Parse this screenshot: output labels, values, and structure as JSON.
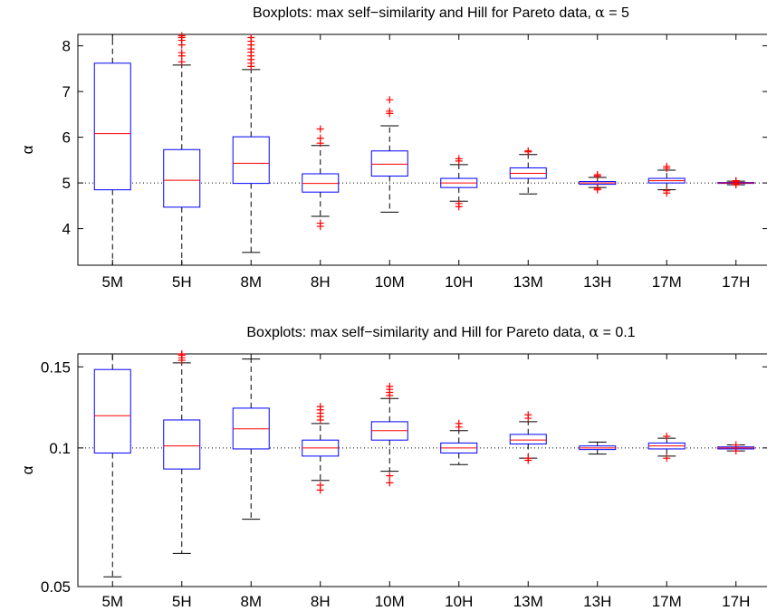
{
  "colors": {
    "box": "#0000ff",
    "median": "#ff0000",
    "whisker": "#000000",
    "outlier": "#ff0000",
    "reference": "#000000"
  },
  "chart_data": [
    {
      "type": "boxplot",
      "title": "Boxplots: max self−similarity and Hill for Pareto data,",
      "title_symbol": "α",
      "title_suffix": " = 5",
      "xlabel": "",
      "ylabel": "α",
      "ylim": [
        3.2,
        8.25
      ],
      "yticks": [
        4,
        5,
        6,
        7,
        8
      ],
      "ytick_labels": [
        "4",
        "5",
        "6",
        "7",
        "8"
      ],
      "reference_line": 5,
      "grid": false,
      "categories": [
        "5M",
        "5H",
        "8M",
        "8H",
        "10M",
        "10H",
        "13M",
        "13H",
        "17M",
        "17H"
      ],
      "boxes": [
        {
          "whisker_low": 3.2,
          "q1": 4.85,
          "median": 6.08,
          "q3": 7.62,
          "whisker_high": 8.25,
          "outliers": []
        },
        {
          "whisker_low": 3.2,
          "q1": 4.47,
          "median": 5.06,
          "q3": 5.73,
          "whisker_high": 7.58,
          "outliers": [
            7.65,
            7.78,
            7.85,
            8.02,
            8.12,
            8.18,
            8.22
          ]
        },
        {
          "whisker_low": 3.48,
          "q1": 4.99,
          "median": 5.43,
          "q3": 6.01,
          "whisker_high": 7.48,
          "outliers": [
            7.55,
            7.62,
            7.7,
            7.78,
            7.86,
            7.93,
            8.02,
            8.1,
            8.18
          ]
        },
        {
          "whisker_low": 4.27,
          "q1": 4.8,
          "median": 4.99,
          "q3": 5.2,
          "whisker_high": 5.82,
          "outliers": [
            4.05,
            4.12,
            5.87,
            5.98,
            6.18
          ]
        },
        {
          "whisker_low": 4.36,
          "q1": 5.15,
          "median": 5.41,
          "q3": 5.7,
          "whisker_high": 6.25,
          "outliers": [
            6.52,
            6.57,
            6.82
          ]
        },
        {
          "whisker_low": 4.6,
          "q1": 4.9,
          "median": 5.0,
          "q3": 5.1,
          "whisker_high": 5.4,
          "outliers": [
            4.48,
            4.55,
            5.48,
            5.53
          ]
        },
        {
          "whisker_low": 4.76,
          "q1": 5.1,
          "median": 5.21,
          "q3": 5.33,
          "whisker_high": 5.62,
          "outliers": [
            5.68,
            5.7
          ]
        },
        {
          "whisker_low": 4.9,
          "q1": 4.97,
          "median": 5.0,
          "q3": 5.03,
          "whisker_high": 5.12,
          "outliers": [
            4.85,
            4.88,
            5.15,
            5.18
          ]
        },
        {
          "whisker_low": 4.85,
          "q1": 5.0,
          "median": 5.05,
          "q3": 5.1,
          "whisker_high": 5.28,
          "outliers": [
            4.78,
            4.83,
            5.32,
            5.36
          ]
        },
        {
          "whisker_low": 4.96,
          "q1": 4.99,
          "median": 5.0,
          "q3": 5.01,
          "whisker_high": 5.04,
          "outliers": [
            4.96,
            4.98,
            5.03,
            5.05
          ]
        }
      ]
    },
    {
      "type": "boxplot",
      "title": "Boxplots: max self−similarity and Hill for Pareto data,",
      "title_symbol": "α",
      "title_suffix": " = 0.1",
      "xlabel": "",
      "ylabel": "α",
      "ylim": [
        0.05,
        0.16
      ],
      "yticks": [
        0.05,
        0.1,
        0.15
      ],
      "ytick_labels": [
        "0.05",
        "0.1",
        "0.15"
      ],
      "log_scale": true,
      "reference_line": 0.1,
      "grid": false,
      "categories": [
        "5M",
        "5H",
        "8M",
        "8H",
        "10M",
        "10H",
        "13M",
        "13H",
        "17M",
        "17H"
      ],
      "boxes": [
        {
          "whisker_low": 0.0525,
          "q1": 0.0975,
          "median": 0.1175,
          "q3": 0.148,
          "whisker_high": 0.16,
          "outliers": []
        },
        {
          "whisker_low": 0.059,
          "q1": 0.09,
          "median": 0.101,
          "q3": 0.115,
          "whisker_high": 0.153,
          "outliers": [
            0.155,
            0.157,
            0.159,
            0.16
          ]
        },
        {
          "whisker_low": 0.07,
          "q1": 0.0995,
          "median": 0.11,
          "q3": 0.122,
          "whisker_high": 0.156,
          "outliers": []
        },
        {
          "whisker_low": 0.085,
          "q1": 0.096,
          "median": 0.1,
          "q3": 0.104,
          "whisker_high": 0.113,
          "outliers": [
            0.081,
            0.083,
            0.115,
            0.117,
            0.119,
            0.121,
            0.123
          ]
        },
        {
          "whisker_low": 0.089,
          "q1": 0.104,
          "median": 0.109,
          "q3": 0.114,
          "whisker_high": 0.128,
          "outliers": [
            0.084,
            0.087,
            0.13,
            0.132,
            0.134,
            0.136
          ]
        },
        {
          "whisker_low": 0.092,
          "q1": 0.0975,
          "median": 0.1,
          "q3": 0.1025,
          "whisker_high": 0.109,
          "outliers": [
            0.111,
            0.113
          ]
        },
        {
          "whisker_low": 0.095,
          "q1": 0.102,
          "median": 0.104,
          "q3": 0.107,
          "whisker_high": 0.114,
          "outliers": [
            0.094,
            0.095,
            0.116,
            0.118
          ]
        },
        {
          "whisker_low": 0.097,
          "q1": 0.0992,
          "median": 0.1,
          "q3": 0.101,
          "whisker_high": 0.103,
          "outliers": []
        },
        {
          "whisker_low": 0.096,
          "q1": 0.0995,
          "median": 0.101,
          "q3": 0.1025,
          "whisker_high": 0.105,
          "outliers": [
            0.095,
            0.106
          ]
        },
        {
          "whisker_low": 0.0985,
          "q1": 0.0995,
          "median": 0.1,
          "q3": 0.1005,
          "whisker_high": 0.1015,
          "outliers": [
            0.0985,
            0.1015
          ]
        }
      ]
    }
  ]
}
